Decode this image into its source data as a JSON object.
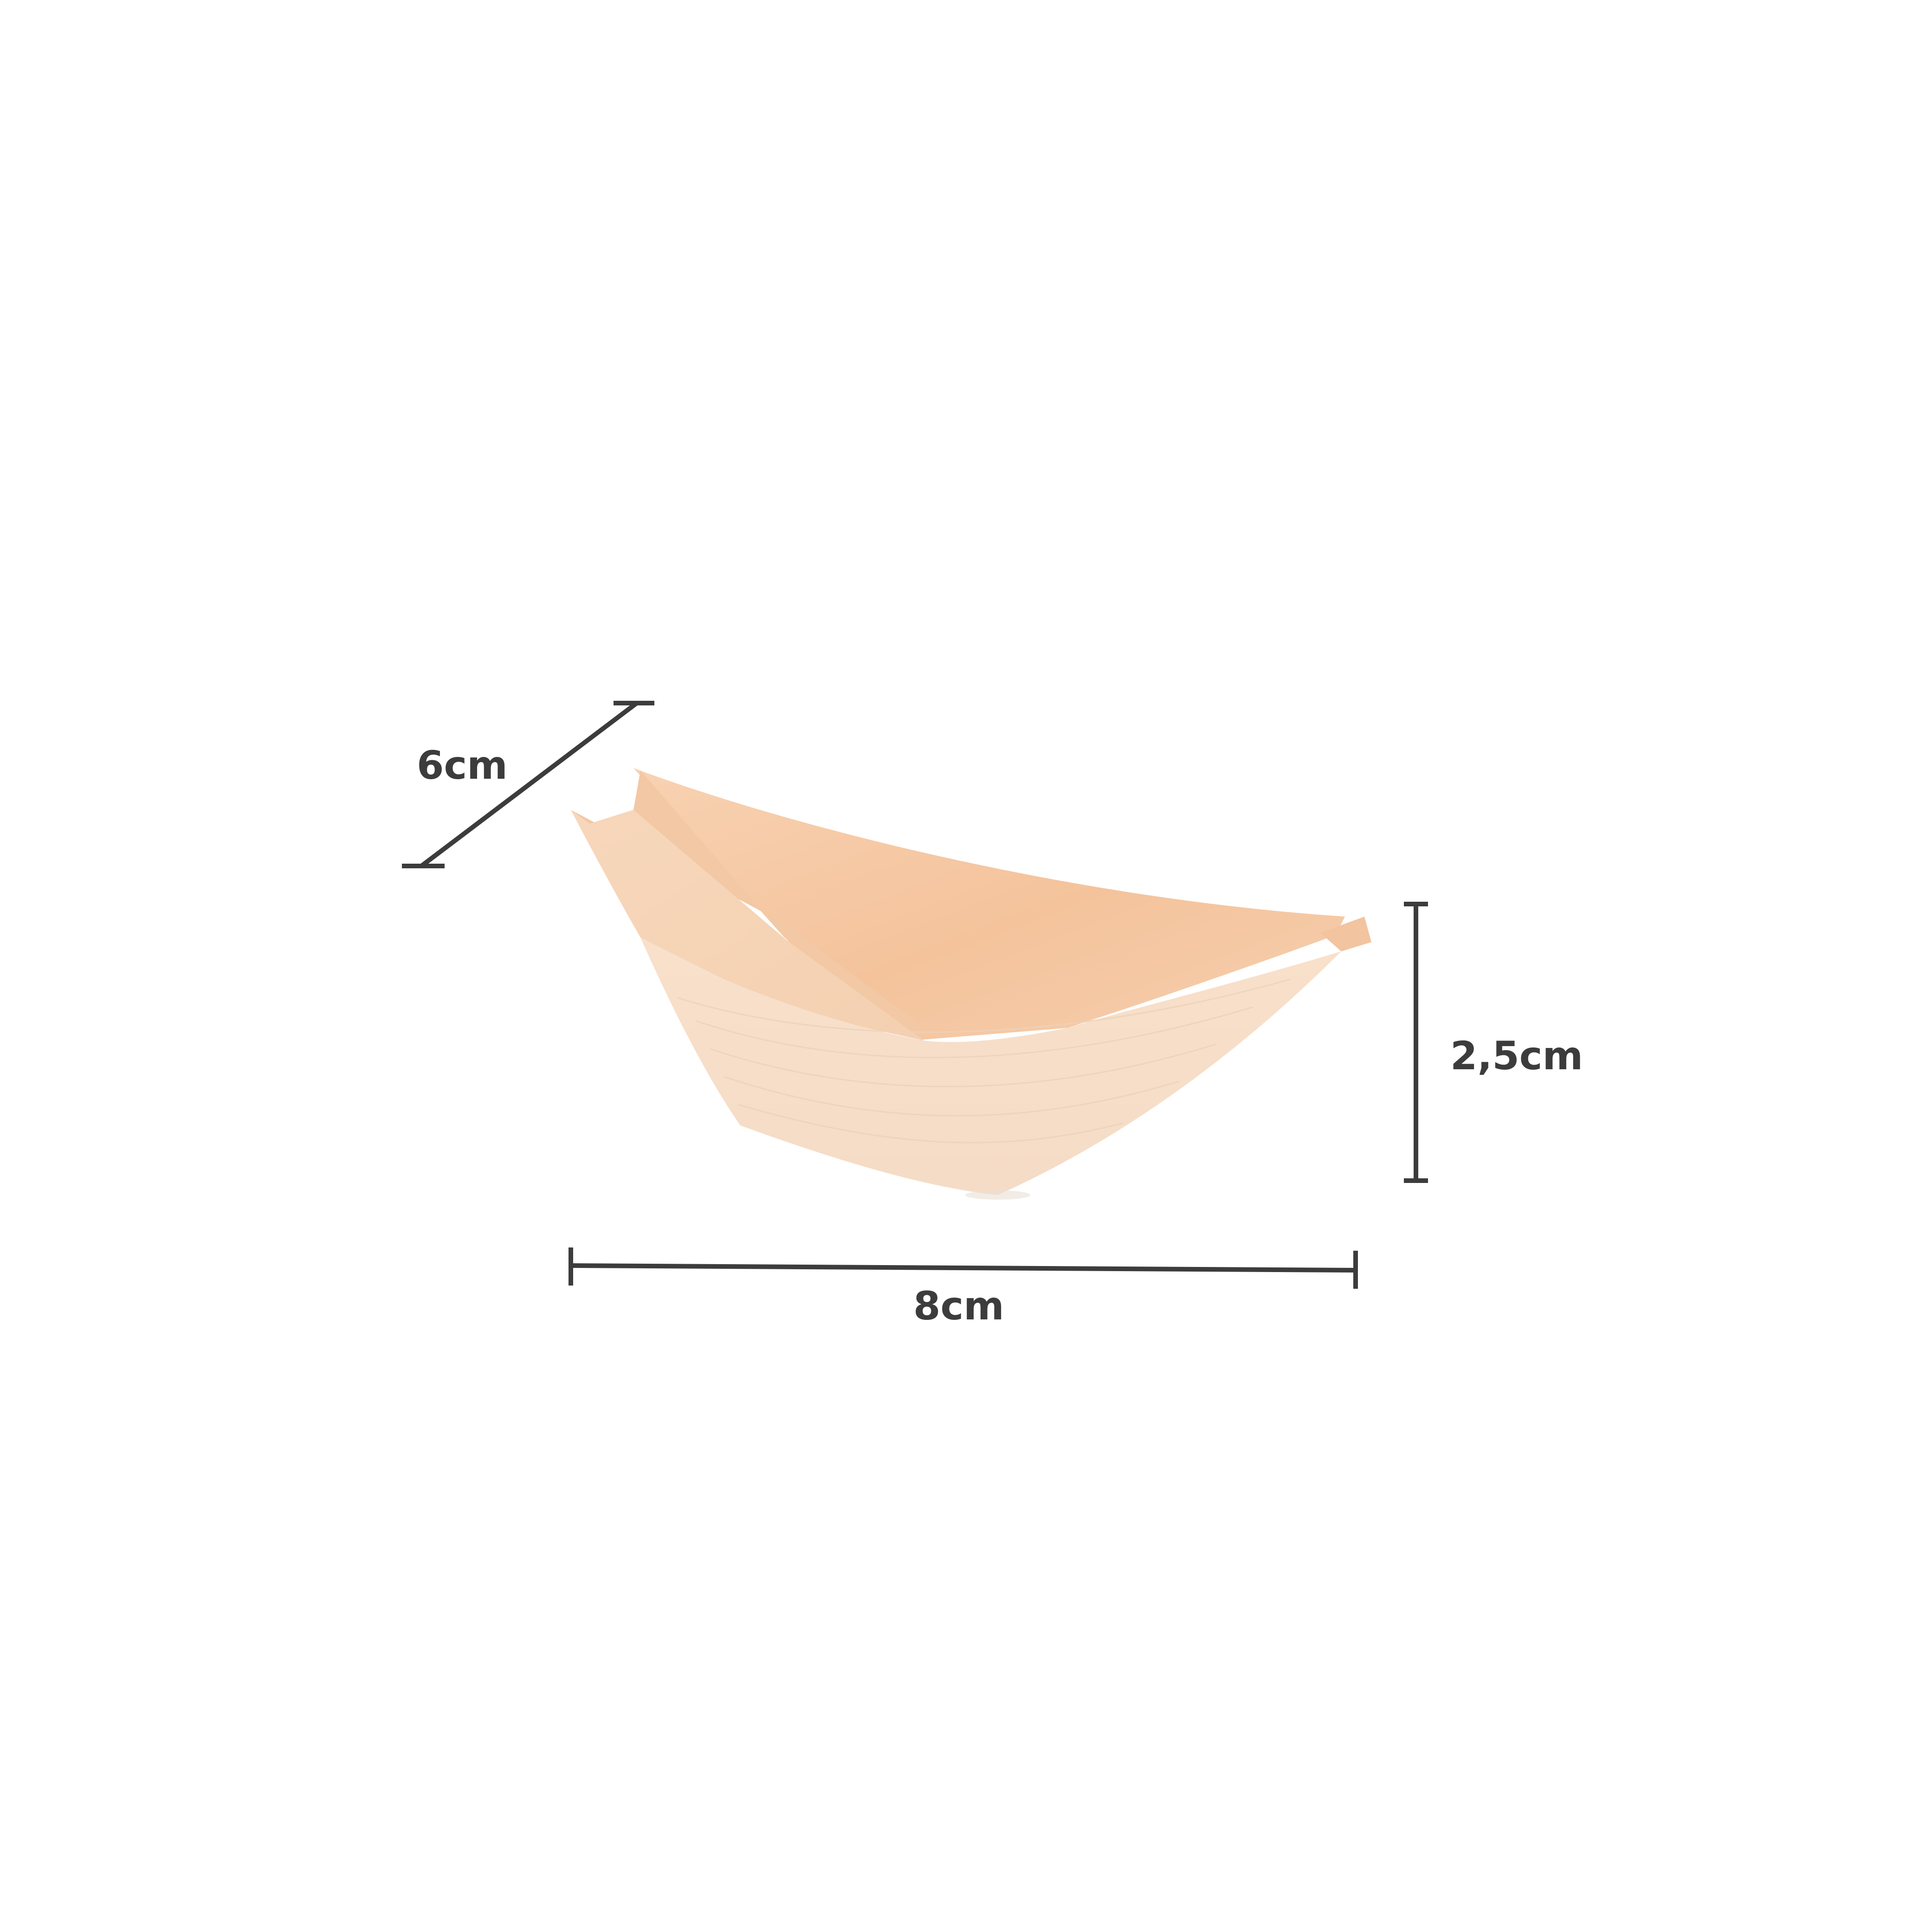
{
  "product": {
    "dimensions": {
      "depth": "6cm",
      "height": "2,5cm",
      "width": "8cm"
    },
    "colors": {
      "dimension_lines": "#3c3c3c",
      "wood_light": "#f6dcc4",
      "wood_dark": "#f3bf95",
      "background": "#ffffff"
    }
  }
}
